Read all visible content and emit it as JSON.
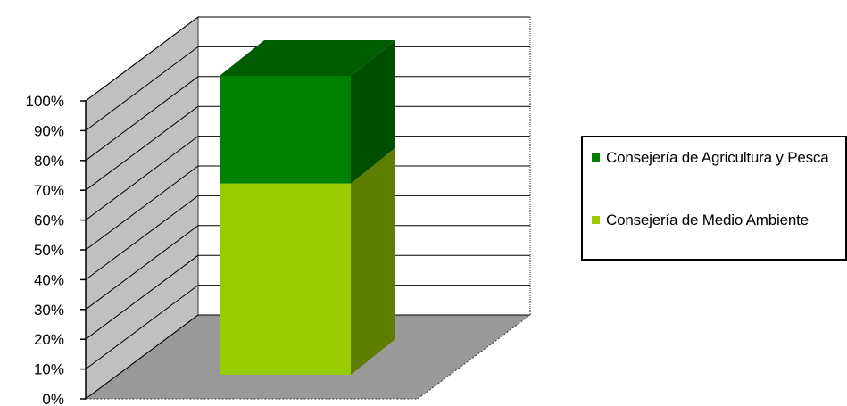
{
  "chart_data": {
    "type": "bar",
    "stacked": true,
    "three_d": true,
    "categories": [
      ""
    ],
    "yticks": [
      "0%",
      "10%",
      "20%",
      "30%",
      "40%",
      "50%",
      "60%",
      "70%",
      "80%",
      "90%",
      "100%"
    ],
    "ylim": [
      0,
      100
    ],
    "series": [
      {
        "name": "Consejería de Medio Ambiente",
        "values": [
          64
        ],
        "color": "#99cc00"
      },
      {
        "name": "Consejería de Agricultura y Pesca",
        "values": [
          36
        ],
        "color": "#008000"
      }
    ],
    "grid": true,
    "legend_position": "right"
  }
}
